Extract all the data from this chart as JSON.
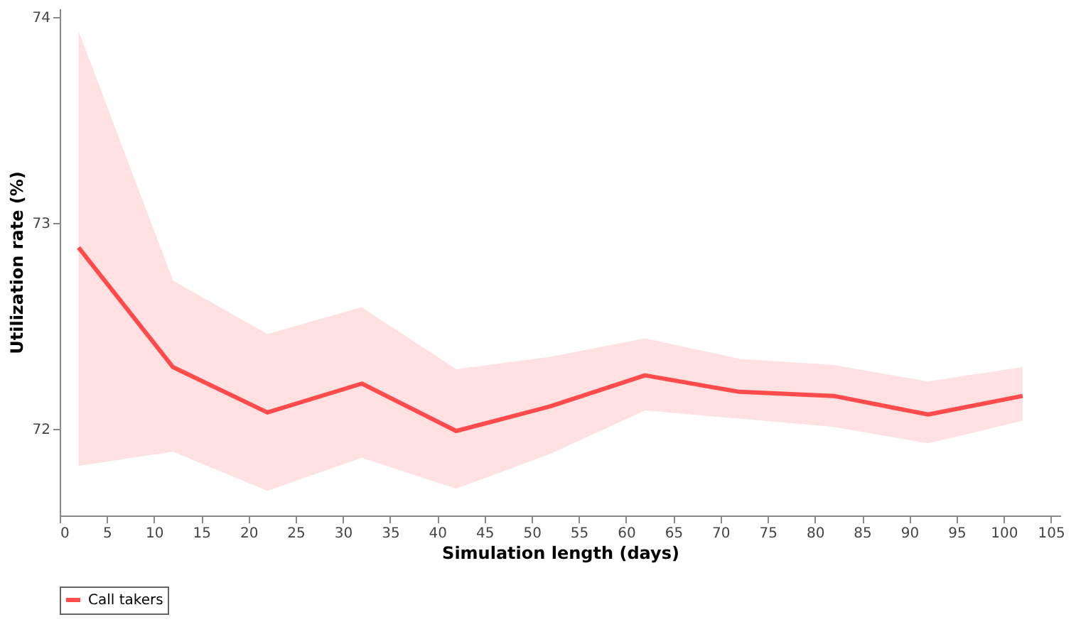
{
  "chart_data": {
    "type": "line",
    "xlabel": "Simulation length (days)",
    "ylabel": "Utilization rate (%)",
    "x": [
      2,
      12,
      22,
      32,
      42,
      52,
      62,
      72,
      82,
      92,
      102
    ],
    "series": [
      {
        "name": "Call takers",
        "color": "#ff4b4b",
        "values": [
          72.88,
          72.3,
          72.08,
          72.22,
          71.99,
          72.11,
          72.26,
          72.18,
          72.16,
          72.07,
          72.16
        ],
        "lower": [
          71.82,
          71.89,
          71.7,
          71.86,
          71.71,
          71.88,
          72.09,
          72.05,
          72.01,
          71.93,
          72.04
        ],
        "upper": [
          73.93,
          72.72,
          72.46,
          72.59,
          72.29,
          72.35,
          72.44,
          72.34,
          72.31,
          72.23,
          72.3
        ]
      }
    ],
    "xlim": [
      0,
      106
    ],
    "xticks": [
      0,
      5,
      10,
      15,
      20,
      25,
      30,
      35,
      40,
      45,
      50,
      55,
      60,
      65,
      70,
      75,
      80,
      85,
      90,
      95,
      100,
      105
    ],
    "ylim": [
      71.58,
      74.04
    ],
    "yticks": [
      72,
      73,
      74
    ],
    "grid": false,
    "legend": "bottom",
    "marker": "none",
    "line_style": "solid"
  }
}
